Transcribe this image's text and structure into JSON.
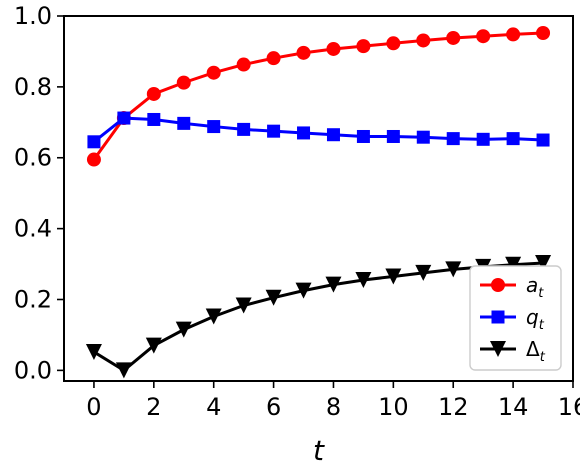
{
  "chart_data": {
    "type": "line",
    "title": "",
    "xlabel": "t",
    "ylabel": "",
    "xlim": [
      -1,
      16
    ],
    "ylim": [
      -0.03,
      1.0
    ],
    "xticks": [
      0,
      2,
      4,
      6,
      8,
      10,
      12,
      14,
      16
    ],
    "yticks": [
      0.0,
      0.2,
      0.4,
      0.6,
      0.8,
      1.0
    ],
    "xtick_labels": [
      "0",
      "2",
      "4",
      "6",
      "8",
      "10",
      "12",
      "14",
      "16"
    ],
    "ytick_labels": [
      "0.0",
      "0.2",
      "0.4",
      "0.6",
      "0.8",
      "1.0"
    ],
    "grid": false,
    "legend_position": "lower-right",
    "x": [
      0,
      1,
      2,
      3,
      4,
      5,
      6,
      7,
      8,
      9,
      10,
      11,
      12,
      13,
      14,
      15
    ],
    "series": [
      {
        "name_base": "a",
        "name_sub": "t",
        "color": "#ff0000",
        "marker": "circle",
        "values": [
          0.595,
          0.712,
          0.78,
          0.812,
          0.84,
          0.863,
          0.881,
          0.896,
          0.907,
          0.915,
          0.923,
          0.931,
          0.938,
          0.943,
          0.948,
          0.952
        ]
      },
      {
        "name_base": "q",
        "name_sub": "t",
        "color": "#0000ff",
        "marker": "square",
        "values": [
          0.645,
          0.712,
          0.708,
          0.697,
          0.688,
          0.68,
          0.675,
          0.67,
          0.665,
          0.66,
          0.66,
          0.658,
          0.654,
          0.652,
          0.654,
          0.65
        ]
      },
      {
        "name_base": "Δ",
        "name_sub": "t",
        "color": "#000000",
        "marker": "triangle-down",
        "values": [
          0.052,
          0.0,
          0.07,
          0.115,
          0.152,
          0.183,
          0.205,
          0.225,
          0.242,
          0.255,
          0.265,
          0.275,
          0.285,
          0.292,
          0.298,
          0.303
        ]
      }
    ]
  }
}
